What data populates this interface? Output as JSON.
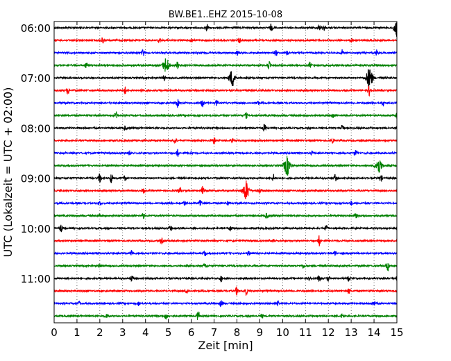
{
  "chart_data": {
    "type": "line",
    "title": "BW.BE1..EHZ 2015-10-08",
    "xlabel": "Zeit  [min]",
    "ylabel": "UTC (Lokalzeit = UTC + 02:00)",
    "xlim": [
      0,
      15
    ],
    "x_ticks": [
      "0",
      "1",
      "2",
      "3",
      "4",
      "5",
      "6",
      "7",
      "8",
      "9",
      "10",
      "11",
      "12",
      "13",
      "14",
      "15"
    ],
    "y_tick_labels": [
      "06:00",
      "07:00",
      "08:00",
      "09:00",
      "10:00",
      "11:00"
    ],
    "grid": "vertical dotted lines at each minute",
    "colors": [
      "#000000",
      "#ff0000",
      "#0000ff",
      "#008000"
    ],
    "traces": [
      {
        "start": "06:00",
        "color": "#000000",
        "events": [
          [
            6.7,
            5
          ],
          [
            9.5,
            5
          ],
          [
            11.6,
            4
          ],
          [
            11.8,
            4
          ],
          [
            15.0,
            12
          ]
        ]
      },
      {
        "start": "06:15",
        "color": "#ff0000",
        "events": [
          [
            2.1,
            4
          ],
          [
            4.6,
            4
          ],
          [
            6.0,
            4
          ],
          [
            8.1,
            4
          ],
          [
            13.0,
            3
          ]
        ]
      },
      {
        "start": "06:30",
        "color": "#0000ff",
        "events": [
          [
            3.9,
            6
          ],
          [
            8.0,
            4
          ],
          [
            9.7,
            5
          ],
          [
            10.2,
            3
          ],
          [
            12.6,
            4
          ],
          [
            14.1,
            4
          ]
        ]
      },
      {
        "start": "06:45",
        "color": "#008000",
        "events": [
          [
            1.4,
            4
          ],
          [
            4.9,
            11
          ],
          [
            5.4,
            5
          ],
          [
            9.4,
            6
          ],
          [
            11.2,
            4
          ]
        ]
      },
      {
        "start": "07:00",
        "color": "#000000",
        "events": [
          [
            4.8,
            4
          ],
          [
            7.8,
            12
          ],
          [
            13.8,
            16
          ]
        ]
      },
      {
        "start": "07:15",
        "color": "#ff0000",
        "events": [
          [
            0.6,
            5
          ],
          [
            3.1,
            5
          ],
          [
            3.9,
            3
          ],
          [
            13.8,
            8
          ]
        ]
      },
      {
        "start": "07:30",
        "color": "#0000ff",
        "events": [
          [
            5.4,
            6
          ],
          [
            6.5,
            7
          ],
          [
            7.1,
            5
          ],
          [
            8.9,
            4
          ],
          [
            14.4,
            4
          ]
        ]
      },
      {
        "start": "07:45",
        "color": "#008000",
        "events": [
          [
            2.7,
            5
          ],
          [
            8.4,
            4
          ],
          [
            12.2,
            4
          ],
          [
            15.0,
            4
          ]
        ]
      },
      {
        "start": "08:00",
        "color": "#000000",
        "events": [
          [
            3.1,
            3
          ],
          [
            9.2,
            5
          ],
          [
            12.6,
            6
          ]
        ]
      },
      {
        "start": "08:15",
        "color": "#ff0000",
        "events": [
          [
            5.3,
            5
          ],
          [
            7.0,
            5
          ],
          [
            7.8,
            3
          ],
          [
            12.2,
            3
          ]
        ]
      },
      {
        "start": "08:30",
        "color": "#0000ff",
        "events": [
          [
            3.3,
            3
          ],
          [
            5.4,
            5
          ],
          [
            6.0,
            3
          ],
          [
            11.3,
            3
          ],
          [
            13.2,
            4
          ]
        ]
      },
      {
        "start": "08:45",
        "color": "#008000",
        "events": [
          [
            10.2,
            14
          ],
          [
            14.2,
            12
          ]
        ]
      },
      {
        "start": "09:00",
        "color": "#000000",
        "events": [
          [
            2.0,
            7
          ],
          [
            2.5,
            7
          ],
          [
            3.1,
            4
          ],
          [
            9.6,
            5
          ],
          [
            12.3,
            5
          ],
          [
            14.3,
            5
          ]
        ]
      },
      {
        "start": "09:15",
        "color": "#ff0000",
        "events": [
          [
            3.9,
            3
          ],
          [
            5.5,
            5
          ],
          [
            6.5,
            6
          ],
          [
            8.4,
            14
          ],
          [
            9.0,
            4
          ]
        ]
      },
      {
        "start": "09:30",
        "color": "#0000ff",
        "events": [
          [
            2.0,
            3
          ],
          [
            5.7,
            3
          ],
          [
            6.4,
            7
          ],
          [
            7.6,
            3
          ],
          [
            13.0,
            3
          ]
        ]
      },
      {
        "start": "09:45",
        "color": "#008000",
        "events": [
          [
            2.0,
            3
          ],
          [
            3.9,
            4
          ],
          [
            9.3,
            4
          ],
          [
            13.2,
            4
          ]
        ]
      },
      {
        "start": "10:00",
        "color": "#000000",
        "events": [
          [
            0.3,
            5
          ],
          [
            5.1,
            4
          ],
          [
            7.7,
            4
          ],
          [
            11.9,
            4
          ]
        ]
      },
      {
        "start": "10:15",
        "color": "#ff0000",
        "events": [
          [
            4.7,
            4
          ],
          [
            9.6,
            4
          ],
          [
            11.6,
            7
          ]
        ]
      },
      {
        "start": "10:30",
        "color": "#0000ff",
        "events": [
          [
            3.4,
            4
          ],
          [
            6.6,
            4
          ],
          [
            8.5,
            3
          ],
          [
            12.3,
            3
          ]
        ]
      },
      {
        "start": "10:45",
        "color": "#008000",
        "events": [
          [
            2.0,
            3
          ],
          [
            6.6,
            4
          ],
          [
            10.9,
            3
          ],
          [
            14.6,
            8
          ]
        ]
      },
      {
        "start": "11:00",
        "color": "#000000",
        "events": [
          [
            3.4,
            4
          ],
          [
            7.3,
            5
          ],
          [
            11.2,
            4
          ],
          [
            11.6,
            4
          ],
          [
            12.0,
            4
          ],
          [
            12.9,
            4
          ],
          [
            15.0,
            5
          ]
        ]
      },
      {
        "start": "11:15",
        "color": "#ff0000",
        "events": [
          [
            5.8,
            5
          ],
          [
            8.0,
            6
          ],
          [
            8.4,
            6
          ],
          [
            12.9,
            4
          ]
        ]
      },
      {
        "start": "11:30",
        "color": "#0000ff",
        "events": [
          [
            1.1,
            3
          ],
          [
            3.7,
            3
          ],
          [
            7.3,
            5
          ],
          [
            9.8,
            4
          ],
          [
            14.0,
            4
          ]
        ]
      },
      {
        "start": "11:45",
        "color": "#008000",
        "events": [
          [
            2.3,
            3
          ],
          [
            4.9,
            4
          ],
          [
            6.3,
            7
          ],
          [
            9.1,
            3
          ],
          [
            12.6,
            3
          ]
        ]
      }
    ]
  }
}
